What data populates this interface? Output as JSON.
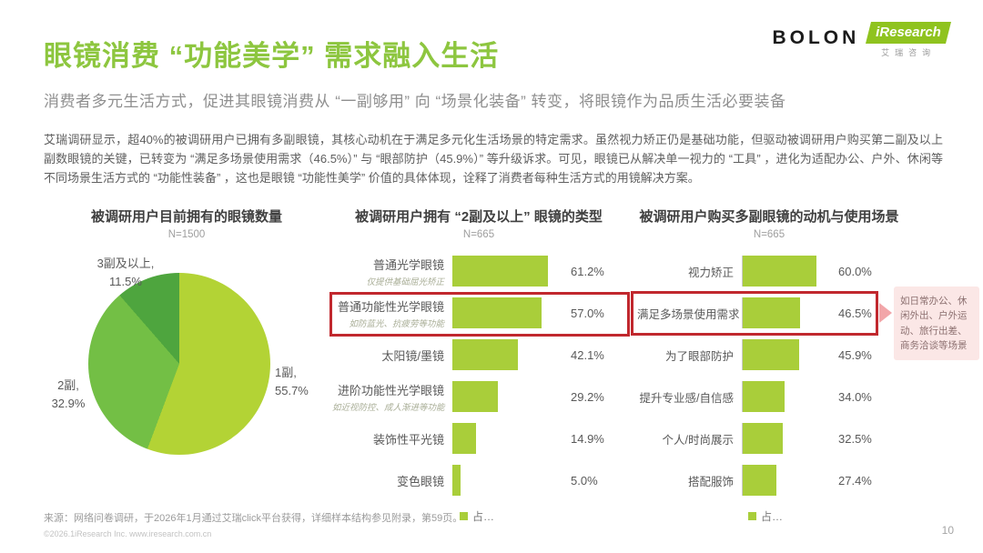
{
  "header": {
    "title": "眼镜消费 “功能美学” 需求融入生活",
    "subtitle": "消费者多元生活方式，促进其眼镜消费从 “一副够用” 向 “场景化装备” 转变，将眼镜作为品质生活必要装备",
    "logo_bolon": "BOLON",
    "logo_iresearch": "iResearch",
    "logo_iresearch_cn": "艾瑞咨询"
  },
  "intro": "艾瑞调研显示，超40%的被调研用户已拥有多副眼镜，其核心动机在于满足多元化生活场景的特定需求。虽然视力矫正仍是基础功能，但驱动被调研用户购买第二副及以上副数眼镜的关键，已转变为 “满足多场景使用需求（46.5%）” 与 “眼部防护（45.9%）” 等升级诉求。可见，眼镜已从解决单一视力的 “工具” ，进化为适配办公、户外、休闲等不同场景生活方式的 “功能性装备” ，这也是眼镜 “功能性美学” 价值的具体体现，诠释了消费者每种生活方式的用镜解决方案。",
  "chart_data": [
    {
      "type": "pie",
      "title": "被调研用户目前拥有的眼镜数量",
      "sample": "N=1500",
      "start_angle": "top",
      "direction": "clockwise",
      "slices": [
        {
          "label": "1副",
          "value": 55.7,
          "display": "1副, 55.7%",
          "color": "#b3d335"
        },
        {
          "label": "2副",
          "value": 32.9,
          "display": "2副, 32.9%",
          "color": "#73bf45"
        },
        {
          "label": "3副及以上",
          "value": 11.5,
          "display": "3副及以上, 11.5%",
          "color": "#4ea53e"
        }
      ]
    },
    {
      "type": "bar",
      "orientation": "horizontal",
      "title": "被调研用户拥有 “2副及以上” 眼镜的类型",
      "sample": "N=665",
      "bar_color": "#a9ce3a",
      "xlim": [
        0,
        70
      ],
      "highlight_index": 1,
      "legend": "占…",
      "rows": [
        {
          "label": "普通光学眼镜",
          "sublabel": "仅提供基础屈光矫正",
          "value": 61.2,
          "display": "61.2%"
        },
        {
          "label": "普通功能性光学眼镜",
          "sublabel": "如防蓝光、抗疲劳等功能",
          "value": 57.0,
          "display": "57.0%"
        },
        {
          "label": "太阳镜/墨镜",
          "sublabel": "",
          "value": 42.1,
          "display": "42.1%"
        },
        {
          "label": "进阶功能性光学眼镜",
          "sublabel": "如近视防控、成人渐进等功能",
          "value": 29.2,
          "display": "29.2%"
        },
        {
          "label": "装饰性平光镜",
          "sublabel": "",
          "value": 14.9,
          "display": "14.9%"
        },
        {
          "label": "变色眼镜",
          "sublabel": "",
          "value": 5.0,
          "display": "5.0%"
        }
      ]
    },
    {
      "type": "bar",
      "orientation": "horizontal",
      "title": "被调研用户购买多副眼镜的动机与使用场景",
      "sample": "N=665",
      "bar_color": "#a9ce3a",
      "xlim": [
        0,
        70
      ],
      "highlight_index": 1,
      "legend": "占…",
      "annotation": "如日常办公、休闲外出、户外运动、旅行出差、商务洽谈等场景",
      "rows": [
        {
          "label": "视力矫正",
          "value": 60.0,
          "display": "60.0%"
        },
        {
          "label": "满足多场景使用需求",
          "value": 46.5,
          "display": "46.5%"
        },
        {
          "label": "为了眼部防护",
          "value": 45.9,
          "display": "45.9%"
        },
        {
          "label": "提升专业感/自信感",
          "value": 34.0,
          "display": "34.0%"
        },
        {
          "label": "个人/时尚展示",
          "value": 32.5,
          "display": "32.5%"
        },
        {
          "label": "搭配服饰",
          "value": 27.4,
          "display": "27.4%"
        }
      ]
    }
  ],
  "colors": {
    "accent_green": "#8dc63f",
    "bar_green": "#a9ce3a",
    "highlight_red": "#c1282e",
    "annotation_pink_bg": "#fbe7e6",
    "annotation_arrow_pink": "#f2a6a9"
  },
  "footer": {
    "source": "来源：网络问卷调研，于2026年1月通过艾瑞click平台获得，详细样本结构参见附录，第59页。",
    "copyright": "©2026.1iResearch Inc.  www.iresearch.com.cn",
    "page_number": "10"
  }
}
